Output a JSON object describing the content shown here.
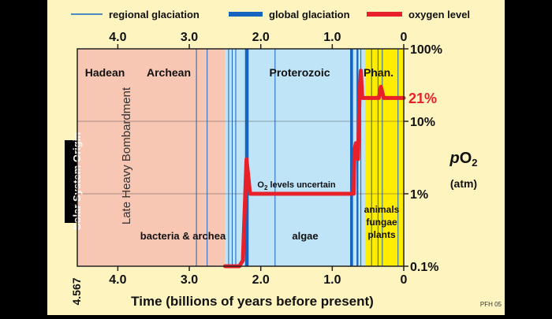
{
  "chart_data": {
    "type": "line",
    "x_axis": {
      "label": "Time (billions of years before present)",
      "range": [
        4.567,
        0
      ],
      "ticks": [
        "4.0",
        "3.0",
        "2.0",
        "1.0",
        "0"
      ],
      "tick_values": [
        4.0,
        3.0,
        2.0,
        1.0,
        0
      ],
      "origin_label": "4.567"
    },
    "y_axis": {
      "label": "pO2",
      "unit": "(atm)",
      "scale": "log",
      "range": [
        0.001,
        1
      ],
      "ticks": [
        "100%",
        "10%",
        "1%",
        "0.1%"
      ],
      "tick_values": [
        1,
        0.1,
        0.01,
        0.001
      ]
    },
    "legend": {
      "placement": "top",
      "items": [
        {
          "label": "regional glaciation",
          "color": "#1565c0",
          "style": "thin"
        },
        {
          "label": "global glaciation",
          "color": "#1565c0",
          "style": "thick"
        },
        {
          "label": "oxygen level",
          "color": "#e8202a",
          "style": "thick"
        }
      ]
    },
    "eons": [
      {
        "name": "Hadean",
        "start": 4.567,
        "end": 4.0,
        "color": "#f8c7b4"
      },
      {
        "name": "Archean",
        "start": 4.0,
        "end": 2.5,
        "color": "#f8c7b4"
      },
      {
        "name": "Proterozoic",
        "start": 2.5,
        "end": 0.541,
        "color": "#bfe3f7"
      },
      {
        "name": "Phan.",
        "start": 0.541,
        "end": 0,
        "color": "#ffec00"
      }
    ],
    "global_glaciations": [
      {
        "start": 2.22,
        "end": 2.17
      },
      {
        "start": 0.75,
        "end": 0.71
      },
      {
        "start": 0.66,
        "end": 0.635
      }
    ],
    "regional_glaciations": [
      2.9,
      2.75,
      2.45,
      2.4,
      2.35,
      1.8,
      0.6,
      0.45,
      0.36,
      0.3,
      0.08
    ],
    "series": [
      {
        "name": "oxygen level",
        "color": "#e8202a",
        "x": [
          2.5,
          2.3,
          2.25,
          2.2,
          2.15,
          2.1,
          0.7,
          0.69,
          0.67,
          0.64,
          0.62,
          0.6,
          0.58,
          0.56,
          0.5,
          0.35,
          0.32,
          0.28,
          0
        ],
        "y": [
          0.001,
          0.001,
          0.0012,
          0.03,
          0.01,
          0.01,
          0.01,
          0.04,
          0.05,
          0.03,
          0.2,
          0.5,
          0.21,
          0.21,
          0.21,
          0.21,
          0.3,
          0.21,
          0.21
        ]
      }
    ],
    "annotations": {
      "eon_labels": [
        "Hadean",
        "Archean",
        "Proterozoic",
        "Phan."
      ],
      "late_heavy_bombardment": "Late Heavy Bombardment",
      "solar_system_origin": "Solar System Origin",
      "o2_uncertain": "O2 levels uncertain",
      "life_archean": "bacteria & archea",
      "life_proterozoic": "algae",
      "life_phanerozoic": [
        "animals",
        "fungae",
        "plants"
      ],
      "current_level": "21%",
      "credit": "PFH 05"
    }
  }
}
